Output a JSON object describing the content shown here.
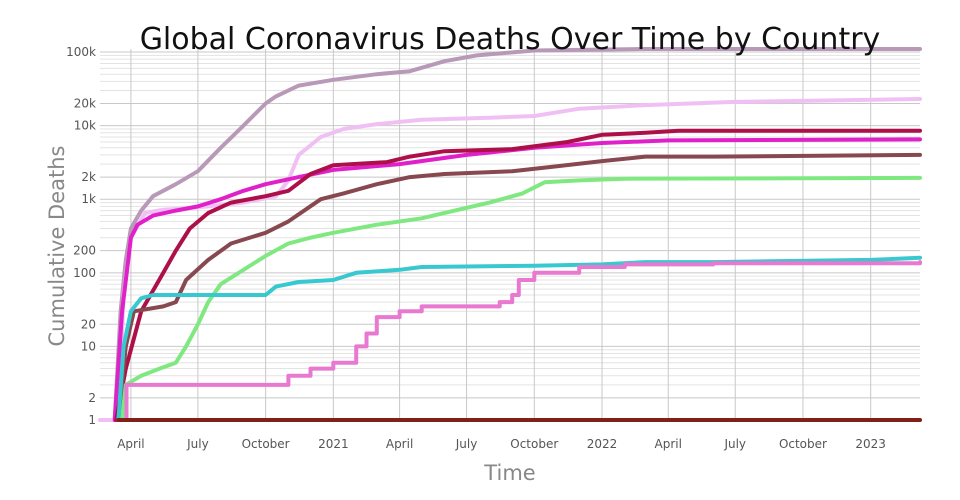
{
  "chart_data": {
    "type": "line",
    "title": "Global Coronavirus Deaths Over Time by Country",
    "xlabel": "Time",
    "ylabel": "Cumulative Deaths",
    "y_scale": "log",
    "ylim": [
      1,
      110000
    ],
    "xlim": [
      "2020-02-19",
      "2023-03-09"
    ],
    "grid": true,
    "legend": "none",
    "x_ticks": [
      {
        "date": "2020-04-01",
        "label": "April"
      },
      {
        "date": "2020-07-01",
        "label": "July"
      },
      {
        "date": "2020-10-01",
        "label": "October"
      },
      {
        "date": "2021-01-01",
        "label": "2021"
      },
      {
        "date": "2021-04-01",
        "label": "April"
      },
      {
        "date": "2021-07-01",
        "label": "July"
      },
      {
        "date": "2021-10-01",
        "label": "October"
      },
      {
        "date": "2022-01-01",
        "label": "2022"
      },
      {
        "date": "2022-04-01",
        "label": "April"
      },
      {
        "date": "2022-07-01",
        "label": "July"
      },
      {
        "date": "2022-10-01",
        "label": "October"
      },
      {
        "date": "2023-01-01",
        "label": "2023"
      }
    ],
    "y_ticks": [
      {
        "value": 1,
        "label": "1"
      },
      {
        "value": 2,
        "label": "2"
      },
      {
        "value": 10,
        "label": "10"
      },
      {
        "value": 20,
        "label": "20"
      },
      {
        "value": 100,
        "label": "100"
      },
      {
        "value": 200,
        "label": "200"
      },
      {
        "value": 1000,
        "label": "1k"
      },
      {
        "value": 2000,
        "label": "2k"
      },
      {
        "value": 10000,
        "label": "10k"
      },
      {
        "value": 20000,
        "label": "20k"
      },
      {
        "value": 100000,
        "label": "100k"
      }
    ],
    "series": [
      {
        "color": "#b89ab8",
        "step": false,
        "points": [
          [
            "2020-03-10",
            1
          ],
          [
            "2020-03-18",
            30
          ],
          [
            "2020-03-25",
            150
          ],
          [
            "2020-04-01",
            400
          ],
          [
            "2020-04-15",
            700
          ],
          [
            "2020-05-01",
            1100
          ],
          [
            "2020-06-01",
            1600
          ],
          [
            "2020-07-01",
            2400
          ],
          [
            "2020-08-01",
            5000
          ],
          [
            "2020-09-01",
            10000
          ],
          [
            "2020-10-01",
            20000
          ],
          [
            "2020-10-15",
            25000
          ],
          [
            "2020-11-15",
            35000
          ],
          [
            "2021-01-01",
            42000
          ],
          [
            "2021-03-01",
            50000
          ],
          [
            "2021-04-15",
            55000
          ],
          [
            "2021-06-01",
            75000
          ],
          [
            "2021-07-15",
            90000
          ],
          [
            "2021-10-01",
            105000
          ],
          [
            "2022-03-01",
            110000
          ],
          [
            "2023-03-09",
            110000
          ]
        ]
      },
      {
        "color": "#f0c0f5",
        "step": false,
        "points": [
          [
            "2020-02-19",
            1
          ],
          [
            "2020-03-15",
            1
          ],
          [
            "2020-03-22",
            50
          ],
          [
            "2020-04-01",
            300
          ],
          [
            "2020-04-20",
            650
          ],
          [
            "2020-05-15",
            720
          ],
          [
            "2020-06-15",
            750
          ],
          [
            "2020-07-15",
            800
          ],
          [
            "2020-09-01",
            900
          ],
          [
            "2020-10-15",
            1100
          ],
          [
            "2020-11-01",
            1800
          ],
          [
            "2020-11-15",
            4000
          ],
          [
            "2020-12-15",
            7000
          ],
          [
            "2021-01-15",
            9000
          ],
          [
            "2021-03-01",
            10500
          ],
          [
            "2021-05-01",
            12000
          ],
          [
            "2021-08-01",
            12800
          ],
          [
            "2021-10-01",
            13500
          ],
          [
            "2021-12-01",
            17000
          ],
          [
            "2022-03-01",
            19000
          ],
          [
            "2022-07-01",
            21000
          ],
          [
            "2023-03-09",
            23000
          ]
        ]
      },
      {
        "color": "#e020c8",
        "step": false,
        "points": [
          [
            "2020-03-10",
            1
          ],
          [
            "2020-03-20",
            30
          ],
          [
            "2020-04-01",
            300
          ],
          [
            "2020-04-10",
            450
          ],
          [
            "2020-05-01",
            600
          ],
          [
            "2020-06-01",
            700
          ],
          [
            "2020-07-01",
            800
          ],
          [
            "2020-08-01",
            1000
          ],
          [
            "2020-09-01",
            1300
          ],
          [
            "2020-10-01",
            1600
          ],
          [
            "2020-11-15",
            2000
          ],
          [
            "2021-01-01",
            2500
          ],
          [
            "2021-04-01",
            3000
          ],
          [
            "2021-07-01",
            4000
          ],
          [
            "2021-10-01",
            5000
          ],
          [
            "2022-01-01",
            5800
          ],
          [
            "2022-04-01",
            6300
          ],
          [
            "2023-03-09",
            6500
          ]
        ]
      },
      {
        "color": "#ad1048",
        "step": false,
        "points": [
          [
            "2020-03-12",
            1
          ],
          [
            "2020-03-25",
            5
          ],
          [
            "2020-04-15",
            30
          ],
          [
            "2020-05-15",
            100
          ],
          [
            "2020-06-01",
            200
          ],
          [
            "2020-06-20",
            400
          ],
          [
            "2020-07-15",
            650
          ],
          [
            "2020-08-15",
            900
          ],
          [
            "2020-10-01",
            1100
          ],
          [
            "2020-11-01",
            1300
          ],
          [
            "2020-12-01",
            2200
          ],
          [
            "2021-01-01",
            2900
          ],
          [
            "2021-03-15",
            3200
          ],
          [
            "2021-04-15",
            3800
          ],
          [
            "2021-06-01",
            4500
          ],
          [
            "2021-09-01",
            4800
          ],
          [
            "2021-11-15",
            6000
          ],
          [
            "2022-01-01",
            7500
          ],
          [
            "2022-03-01",
            8000
          ],
          [
            "2022-04-15",
            8500
          ],
          [
            "2023-03-09",
            8500
          ]
        ]
      },
      {
        "color": "#884850",
        "step": false,
        "points": [
          [
            "2020-03-15",
            1
          ],
          [
            "2020-03-25",
            10
          ],
          [
            "2020-04-05",
            30
          ],
          [
            "2020-05-15",
            35
          ],
          [
            "2020-06-01",
            40
          ],
          [
            "2020-06-15",
            80
          ],
          [
            "2020-07-15",
            150
          ],
          [
            "2020-08-15",
            250
          ],
          [
            "2020-10-01",
            350
          ],
          [
            "2020-11-01",
            500
          ],
          [
            "2020-12-15",
            1000
          ],
          [
            "2021-01-15",
            1200
          ],
          [
            "2021-03-01",
            1600
          ],
          [
            "2021-04-15",
            2000
          ],
          [
            "2021-06-01",
            2200
          ],
          [
            "2021-09-01",
            2400
          ],
          [
            "2021-11-01",
            2800
          ],
          [
            "2022-01-01",
            3300
          ],
          [
            "2022-03-01",
            3800
          ],
          [
            "2022-06-01",
            3800
          ],
          [
            "2023-03-09",
            4000
          ]
        ]
      },
      {
        "color": "#80e880",
        "step": false,
        "points": [
          [
            "2020-03-20",
            1
          ],
          [
            "2020-03-25",
            3
          ],
          [
            "2020-04-15",
            4
          ],
          [
            "2020-05-10",
            5
          ],
          [
            "2020-06-01",
            6
          ],
          [
            "2020-06-15",
            10
          ],
          [
            "2020-07-01",
            20
          ],
          [
            "2020-07-15",
            40
          ],
          [
            "2020-08-01",
            70
          ],
          [
            "2020-09-01",
            110
          ],
          [
            "2020-10-01",
            170
          ],
          [
            "2020-11-01",
            250
          ],
          [
            "2020-12-01",
            300
          ],
          [
            "2021-01-01",
            350
          ],
          [
            "2021-03-01",
            450
          ],
          [
            "2021-05-01",
            550
          ],
          [
            "2021-06-15",
            700
          ],
          [
            "2021-08-01",
            900
          ],
          [
            "2021-09-15",
            1200
          ],
          [
            "2021-10-15",
            1700
          ],
          [
            "2021-12-01",
            1800
          ],
          [
            "2022-02-01",
            1900
          ],
          [
            "2023-03-09",
            1950
          ]
        ]
      },
      {
        "color": "#38c8d0",
        "step": false,
        "points": [
          [
            "2020-03-15",
            1
          ],
          [
            "2020-03-22",
            10
          ],
          [
            "2020-04-01",
            30
          ],
          [
            "2020-04-15",
            45
          ],
          [
            "2020-05-01",
            50
          ],
          [
            "2020-10-01",
            50
          ],
          [
            "2020-10-15",
            65
          ],
          [
            "2020-11-15",
            75
          ],
          [
            "2021-01-01",
            80
          ],
          [
            "2021-02-01",
            100
          ],
          [
            "2021-04-01",
            110
          ],
          [
            "2021-05-01",
            120
          ],
          [
            "2021-10-01",
            125
          ],
          [
            "2022-01-01",
            130
          ],
          [
            "2022-03-01",
            140
          ],
          [
            "2022-06-01",
            140
          ],
          [
            "2023-01-01",
            150
          ],
          [
            "2023-03-09",
            160
          ]
        ]
      },
      {
        "color": "#e878d0",
        "step": true,
        "points": [
          [
            "2020-03-25",
            1
          ],
          [
            "2020-03-26",
            3
          ],
          [
            "2020-10-15",
            3
          ],
          [
            "2020-11-01",
            4
          ],
          [
            "2020-12-01",
            5
          ],
          [
            "2021-01-01",
            6
          ],
          [
            "2021-02-01",
            10
          ],
          [
            "2021-02-15",
            15
          ],
          [
            "2021-03-01",
            25
          ],
          [
            "2021-04-01",
            30
          ],
          [
            "2021-05-01",
            35
          ],
          [
            "2021-08-15",
            40
          ],
          [
            "2021-09-01",
            50
          ],
          [
            "2021-09-10",
            80
          ],
          [
            "2021-10-01",
            100
          ],
          [
            "2021-12-01",
            120
          ],
          [
            "2022-02-01",
            130
          ],
          [
            "2022-06-01",
            135
          ],
          [
            "2023-03-09",
            140
          ]
        ]
      },
      {
        "color": "#802018",
        "step": false,
        "points": [
          [
            "2020-03-15",
            1
          ],
          [
            "2023-03-09",
            1
          ]
        ]
      }
    ]
  }
}
